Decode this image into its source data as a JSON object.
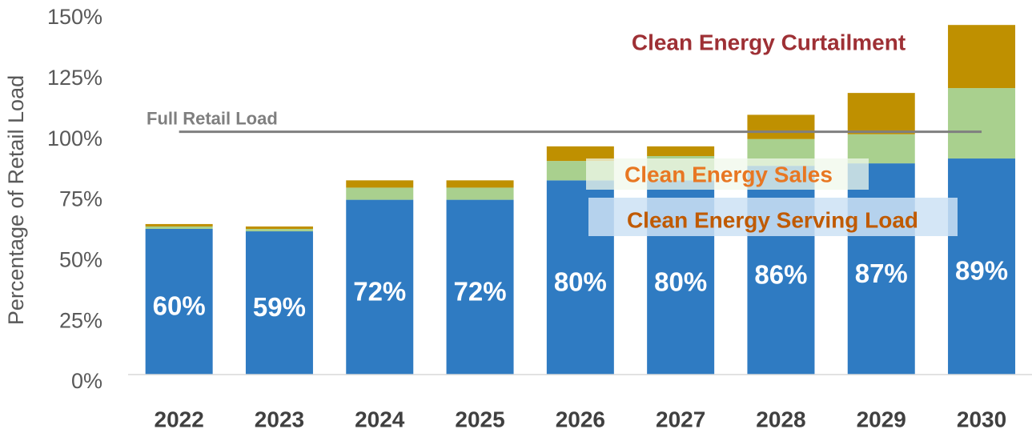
{
  "chart_data": {
    "type": "stacked_bar",
    "y_axis_label": "Percentage of Retail Load",
    "categories": [
      "2022",
      "2023",
      "2024",
      "2025",
      "2026",
      "2027",
      "2028",
      "2029",
      "2030"
    ],
    "series": [
      {
        "name": "Clean Energy Serving Load",
        "color": "#2f7bc2",
        "label_color": "#c05a00",
        "values": [
          60,
          59,
          72,
          72,
          80,
          80,
          86,
          87,
          89
        ],
        "value_labels": [
          "60%",
          "59%",
          "72%",
          "72%",
          "80%",
          "80%",
          "86%",
          "87%",
          "89%"
        ]
      },
      {
        "name": "Clean Energy Sales",
        "color": "#a9d08e",
        "label_color": "#e87722",
        "values": [
          1,
          1,
          5,
          5,
          8,
          10,
          11,
          12,
          29
        ]
      },
      {
        "name": "Clean Energy Curtailment",
        "color": "#bf9000",
        "label_color": "#9e3035",
        "values": [
          1,
          1,
          3,
          3,
          6,
          4,
          10,
          17,
          26
        ]
      }
    ],
    "reference_line": {
      "name": "Full Retail Load",
      "value": 100,
      "color": "#7f7f7f"
    },
    "ylim": [
      0,
      150
    ],
    "yticks": [
      {
        "value": 0,
        "label": "0%"
      },
      {
        "value": 25,
        "label": "25%"
      },
      {
        "value": 50,
        "label": "50%"
      },
      {
        "value": 75,
        "label": "75%"
      },
      {
        "value": 100,
        "label": "100%"
      },
      {
        "value": 125,
        "label": "125%"
      },
      {
        "value": 150,
        "label": "150%"
      }
    ],
    "grid": false
  }
}
